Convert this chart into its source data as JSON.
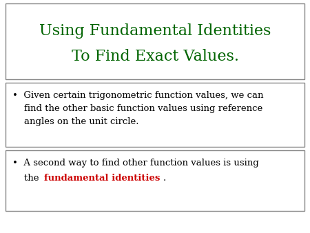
{
  "title_line1": "Using Fundamental Identities",
  "title_line2": "To Find Exact Values.",
  "title_color": "#006400",
  "title_fontsize": 16,
  "box1_text": "Given certain trigonometric function values, we can find the other basic function values using reference angles on the unit circle.",
  "box2_text_pre": "A second way to find other function values is using\nthe ",
  "box2_text_bold": "fundamental identities",
  "box2_text_post": ".",
  "box_text_color": "#000000",
  "box_text_bold_color": "#cc0000",
  "body_fontsize": 9.5,
  "background_color": "#ffffff",
  "box_edge_color": "#888888"
}
